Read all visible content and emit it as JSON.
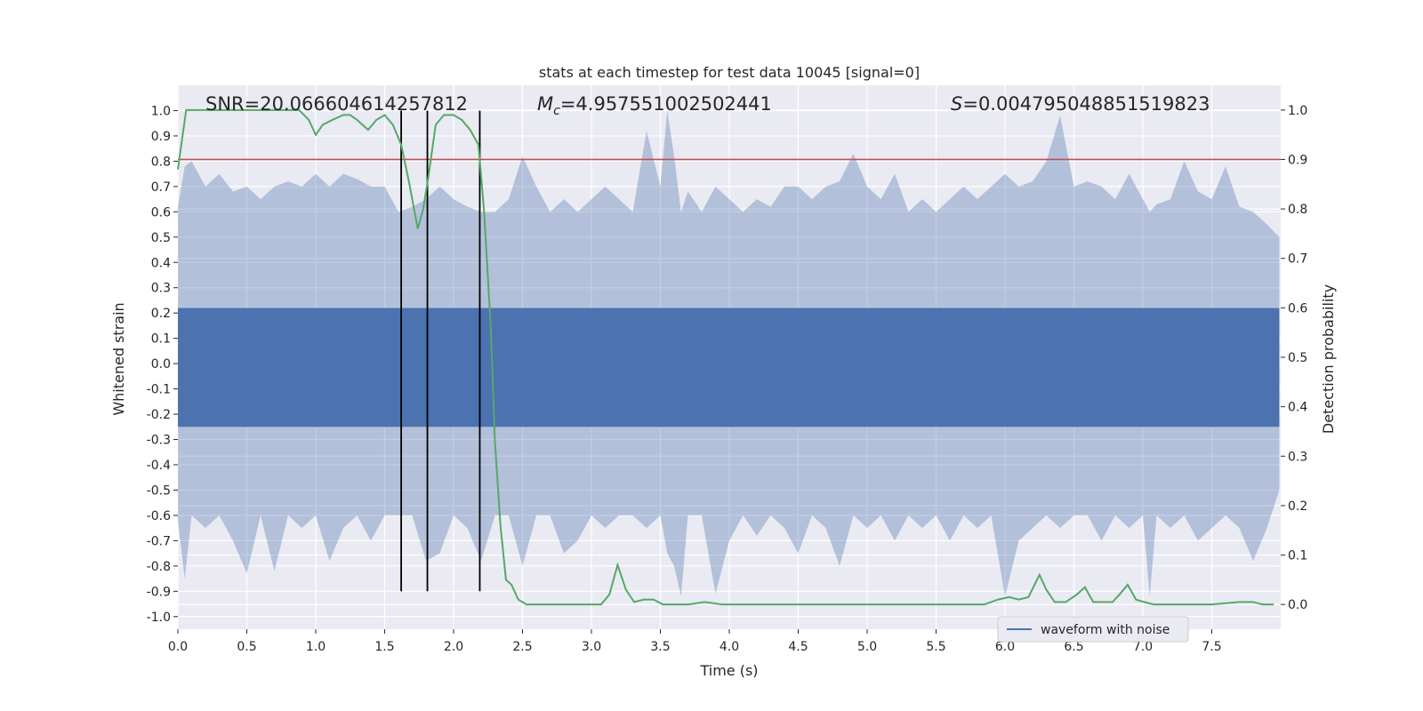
{
  "chart_data": {
    "type": "line",
    "title": "stats at each timestep for test data 10045 [signal=0]",
    "xlabel": "Time (s)",
    "ylabel": "Whitened strain",
    "y2label": "Detection probability",
    "xlim": [
      0.0,
      8.0
    ],
    "ylim": [
      -1.05,
      1.1
    ],
    "y2lim": [
      -0.05,
      1.05
    ],
    "grid": true,
    "xticks": [
      "0.0",
      "0.5",
      "1.0",
      "1.5",
      "2.0",
      "2.5",
      "3.0",
      "3.5",
      "4.0",
      "4.5",
      "5.0",
      "5.5",
      "6.0",
      "6.5",
      "7.0",
      "7.5"
    ],
    "yticks": [
      "-1.0",
      "-0.9",
      "-0.8",
      "-0.7",
      "-0.6",
      "-0.5",
      "-0.4",
      "-0.3",
      "-0.2",
      "-0.1",
      "0.0",
      "0.1",
      "0.2",
      "0.3",
      "0.4",
      "0.5",
      "0.6",
      "0.7",
      "0.8",
      "0.9",
      "1.0"
    ],
    "y2ticks": [
      "0.0",
      "0.1",
      "0.2",
      "0.3",
      "0.4",
      "0.5",
      "0.6",
      "0.7",
      "0.8",
      "0.9",
      "1.0"
    ],
    "annotations": {
      "snr": "SNR=20.066604614257812",
      "mc_symbol": "M",
      "mc_sub": "c",
      "mc_value": "=4.957551002502441",
      "s_symbol": "S",
      "s_value": "=0.004795048851519823"
    },
    "legend": {
      "position": "lower-right",
      "entries": [
        "waveform with noise"
      ]
    },
    "threshold_line": {
      "y2": 0.9,
      "color": "#c44e52"
    },
    "vertical_lines": {
      "x": [
        1.62,
        1.81,
        2.19
      ],
      "color": "#000000"
    },
    "series": [
      {
        "name": "waveform with noise",
        "axis": "left",
        "color": "#4c72b0",
        "envelope": [
          [
            0.0,
            -0.62,
            0.62
          ],
          [
            0.05,
            -0.85,
            0.78
          ],
          [
            0.1,
            -0.6,
            0.8
          ],
          [
            0.2,
            -0.65,
            0.7
          ],
          [
            0.3,
            -0.6,
            0.75
          ],
          [
            0.4,
            -0.7,
            0.68
          ],
          [
            0.5,
            -0.83,
            0.7
          ],
          [
            0.6,
            -0.6,
            0.65
          ],
          [
            0.7,
            -0.82,
            0.7
          ],
          [
            0.8,
            -0.6,
            0.72
          ],
          [
            0.9,
            -0.65,
            0.7
          ],
          [
            1.0,
            -0.6,
            0.75
          ],
          [
            1.1,
            -0.78,
            0.7
          ],
          [
            1.2,
            -0.65,
            0.75
          ],
          [
            1.3,
            -0.6,
            0.73
          ],
          [
            1.4,
            -0.7,
            0.7
          ],
          [
            1.5,
            -0.6,
            0.7
          ],
          [
            1.6,
            -0.6,
            0.6
          ],
          [
            1.7,
            -0.6,
            0.62
          ],
          [
            1.8,
            -0.78,
            0.65
          ],
          [
            1.9,
            -0.75,
            0.7
          ],
          [
            2.0,
            -0.6,
            0.65
          ],
          [
            2.1,
            -0.65,
            0.62
          ],
          [
            2.2,
            -0.78,
            0.6
          ],
          [
            2.3,
            -0.6,
            0.6
          ],
          [
            2.4,
            -0.6,
            0.65
          ],
          [
            2.5,
            -0.8,
            0.82
          ],
          [
            2.6,
            -0.6,
            0.7
          ],
          [
            2.7,
            -0.6,
            0.6
          ],
          [
            2.8,
            -0.75,
            0.65
          ],
          [
            2.9,
            -0.7,
            0.6
          ],
          [
            3.0,
            -0.6,
            0.65
          ],
          [
            3.1,
            -0.65,
            0.7
          ],
          [
            3.2,
            -0.6,
            0.65
          ],
          [
            3.3,
            -0.6,
            0.6
          ],
          [
            3.4,
            -0.65,
            0.92
          ],
          [
            3.5,
            -0.6,
            0.7
          ],
          [
            3.55,
            -0.75,
            1.0
          ],
          [
            3.6,
            -0.8,
            0.82
          ],
          [
            3.65,
            -0.92,
            0.6
          ],
          [
            3.7,
            -0.6,
            0.68
          ],
          [
            3.8,
            -0.6,
            0.6
          ],
          [
            3.9,
            -0.91,
            0.7
          ],
          [
            4.0,
            -0.7,
            0.65
          ],
          [
            4.1,
            -0.6,
            0.6
          ],
          [
            4.2,
            -0.68,
            0.65
          ],
          [
            4.3,
            -0.6,
            0.62
          ],
          [
            4.4,
            -0.65,
            0.7
          ],
          [
            4.5,
            -0.75,
            0.7
          ],
          [
            4.6,
            -0.6,
            0.65
          ],
          [
            4.7,
            -0.65,
            0.7
          ],
          [
            4.8,
            -0.8,
            0.72
          ],
          [
            4.9,
            -0.6,
            0.83
          ],
          [
            5.0,
            -0.65,
            0.7
          ],
          [
            5.1,
            -0.6,
            0.65
          ],
          [
            5.2,
            -0.7,
            0.75
          ],
          [
            5.3,
            -0.6,
            0.6
          ],
          [
            5.4,
            -0.65,
            0.65
          ],
          [
            5.5,
            -0.6,
            0.6
          ],
          [
            5.6,
            -0.7,
            0.65
          ],
          [
            5.7,
            -0.6,
            0.7
          ],
          [
            5.8,
            -0.65,
            0.65
          ],
          [
            5.9,
            -0.6,
            0.7
          ],
          [
            6.0,
            -0.92,
            0.75
          ],
          [
            6.1,
            -0.7,
            0.7
          ],
          [
            6.2,
            -0.65,
            0.72
          ],
          [
            6.3,
            -0.6,
            0.8
          ],
          [
            6.4,
            -0.65,
            0.98
          ],
          [
            6.5,
            -0.6,
            0.7
          ],
          [
            6.6,
            -0.6,
            0.72
          ],
          [
            6.7,
            -0.7,
            0.7
          ],
          [
            6.8,
            -0.6,
            0.65
          ],
          [
            6.9,
            -0.65,
            0.75
          ],
          [
            7.0,
            -0.6,
            0.65
          ],
          [
            7.05,
            -0.92,
            0.6
          ],
          [
            7.1,
            -0.6,
            0.63
          ],
          [
            7.2,
            -0.65,
            0.65
          ],
          [
            7.3,
            -0.6,
            0.8
          ],
          [
            7.4,
            -0.7,
            0.68
          ],
          [
            7.5,
            -0.65,
            0.65
          ],
          [
            7.6,
            -0.6,
            0.78
          ],
          [
            7.7,
            -0.65,
            0.62
          ],
          [
            7.8,
            -0.78,
            0.6
          ],
          [
            7.9,
            -0.65,
            0.55
          ],
          [
            7.99,
            -0.5,
            0.5
          ]
        ]
      },
      {
        "name": "",
        "axis": "right",
        "color": "#55a868",
        "x": [
          0.0,
          0.06,
          0.12,
          0.3,
          0.5,
          0.7,
          0.88,
          0.95,
          1.0,
          1.05,
          1.12,
          1.2,
          1.25,
          1.3,
          1.38,
          1.44,
          1.5,
          1.56,
          1.62,
          1.68,
          1.74,
          1.78,
          1.82,
          1.87,
          1.93,
          2.0,
          2.06,
          2.12,
          2.18,
          2.22,
          2.27,
          2.3,
          2.34,
          2.38,
          2.42,
          2.47,
          2.53,
          2.6,
          2.7,
          2.8,
          2.9,
          3.0,
          3.07,
          3.13,
          3.19,
          3.25,
          3.31,
          3.38,
          3.45,
          3.52,
          3.6,
          3.7,
          3.82,
          3.95,
          4.1,
          4.3,
          4.5,
          4.7,
          4.9,
          5.1,
          5.3,
          5.5,
          5.7,
          5.85,
          5.95,
          6.03,
          6.1,
          6.17,
          6.25,
          6.3,
          6.36,
          6.44,
          6.52,
          6.58,
          6.64,
          6.7,
          6.78,
          6.83,
          6.89,
          6.95,
          7.01,
          7.08,
          7.15,
          7.3,
          7.5,
          7.7,
          7.8,
          7.87,
          7.95
        ],
        "y": [
          0.88,
          1.0,
          1.0,
          1.0,
          1.0,
          1.0,
          1.0,
          0.98,
          0.95,
          0.97,
          0.98,
          0.99,
          0.99,
          0.98,
          0.96,
          0.98,
          0.99,
          0.97,
          0.93,
          0.85,
          0.76,
          0.8,
          0.87,
          0.97,
          0.99,
          0.99,
          0.98,
          0.96,
          0.93,
          0.8,
          0.56,
          0.33,
          0.16,
          0.05,
          0.04,
          0.01,
          0.0,
          0.0,
          0.0,
          0.0,
          0.0,
          0.0,
          0.0,
          0.02,
          0.08,
          0.03,
          0.005,
          0.01,
          0.01,
          0.0,
          0.0,
          0.0,
          0.005,
          0.0,
          0.0,
          0.0,
          0.0,
          0.0,
          0.0,
          0.0,
          0.0,
          0.0,
          0.0,
          0.0,
          0.01,
          0.015,
          0.01,
          0.015,
          0.06,
          0.03,
          0.005,
          0.005,
          0.02,
          0.035,
          0.005,
          0.005,
          0.005,
          0.02,
          0.04,
          0.01,
          0.005,
          0.0,
          0.0,
          0.0,
          0.0,
          0.005,
          0.005,
          0.0,
          0.0
        ]
      }
    ]
  }
}
